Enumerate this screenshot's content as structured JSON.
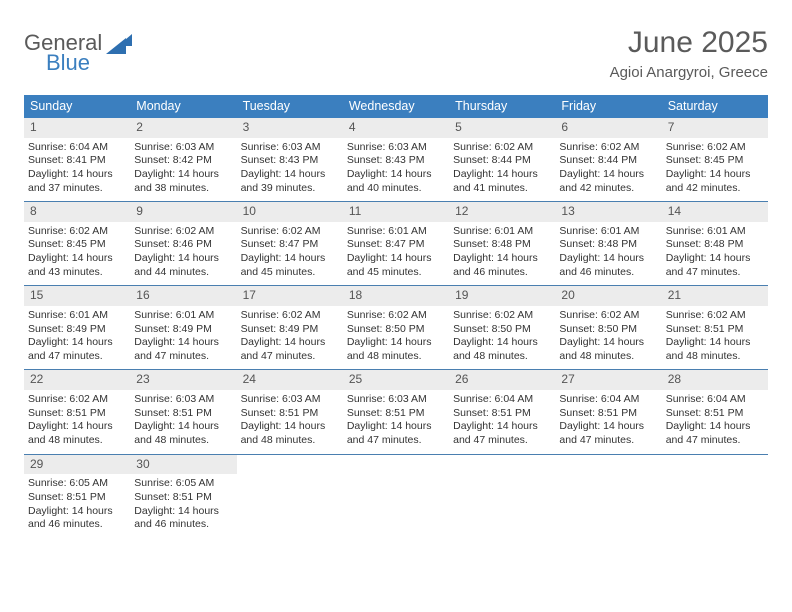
{
  "logo": {
    "line1": "General",
    "line2": "Blue"
  },
  "title": "June 2025",
  "location": "Agioi Anargyroi, Greece",
  "colors": {
    "header_bg": "#3b7fbf",
    "header_text": "#ffffff",
    "daynum_bg": "#ececec",
    "week_border": "#4a7fb0",
    "text": "#333333",
    "logo_gray": "#5a5a5a",
    "logo_blue": "#3b7fbf"
  },
  "day_headers": [
    "Sunday",
    "Monday",
    "Tuesday",
    "Wednesday",
    "Thursday",
    "Friday",
    "Saturday"
  ],
  "weeks": [
    [
      {
        "n": "1",
        "sr": "Sunrise: 6:04 AM",
        "ss": "Sunset: 8:41 PM",
        "d1": "Daylight: 14 hours",
        "d2": "and 37 minutes."
      },
      {
        "n": "2",
        "sr": "Sunrise: 6:03 AM",
        "ss": "Sunset: 8:42 PM",
        "d1": "Daylight: 14 hours",
        "d2": "and 38 minutes."
      },
      {
        "n": "3",
        "sr": "Sunrise: 6:03 AM",
        "ss": "Sunset: 8:43 PM",
        "d1": "Daylight: 14 hours",
        "d2": "and 39 minutes."
      },
      {
        "n": "4",
        "sr": "Sunrise: 6:03 AM",
        "ss": "Sunset: 8:43 PM",
        "d1": "Daylight: 14 hours",
        "d2": "and 40 minutes."
      },
      {
        "n": "5",
        "sr": "Sunrise: 6:02 AM",
        "ss": "Sunset: 8:44 PM",
        "d1": "Daylight: 14 hours",
        "d2": "and 41 minutes."
      },
      {
        "n": "6",
        "sr": "Sunrise: 6:02 AM",
        "ss": "Sunset: 8:44 PM",
        "d1": "Daylight: 14 hours",
        "d2": "and 42 minutes."
      },
      {
        "n": "7",
        "sr": "Sunrise: 6:02 AM",
        "ss": "Sunset: 8:45 PM",
        "d1": "Daylight: 14 hours",
        "d2": "and 42 minutes."
      }
    ],
    [
      {
        "n": "8",
        "sr": "Sunrise: 6:02 AM",
        "ss": "Sunset: 8:45 PM",
        "d1": "Daylight: 14 hours",
        "d2": "and 43 minutes."
      },
      {
        "n": "9",
        "sr": "Sunrise: 6:02 AM",
        "ss": "Sunset: 8:46 PM",
        "d1": "Daylight: 14 hours",
        "d2": "and 44 minutes."
      },
      {
        "n": "10",
        "sr": "Sunrise: 6:02 AM",
        "ss": "Sunset: 8:47 PM",
        "d1": "Daylight: 14 hours",
        "d2": "and 45 minutes."
      },
      {
        "n": "11",
        "sr": "Sunrise: 6:01 AM",
        "ss": "Sunset: 8:47 PM",
        "d1": "Daylight: 14 hours",
        "d2": "and 45 minutes."
      },
      {
        "n": "12",
        "sr": "Sunrise: 6:01 AM",
        "ss": "Sunset: 8:48 PM",
        "d1": "Daylight: 14 hours",
        "d2": "and 46 minutes."
      },
      {
        "n": "13",
        "sr": "Sunrise: 6:01 AM",
        "ss": "Sunset: 8:48 PM",
        "d1": "Daylight: 14 hours",
        "d2": "and 46 minutes."
      },
      {
        "n": "14",
        "sr": "Sunrise: 6:01 AM",
        "ss": "Sunset: 8:48 PM",
        "d1": "Daylight: 14 hours",
        "d2": "and 47 minutes."
      }
    ],
    [
      {
        "n": "15",
        "sr": "Sunrise: 6:01 AM",
        "ss": "Sunset: 8:49 PM",
        "d1": "Daylight: 14 hours",
        "d2": "and 47 minutes."
      },
      {
        "n": "16",
        "sr": "Sunrise: 6:01 AM",
        "ss": "Sunset: 8:49 PM",
        "d1": "Daylight: 14 hours",
        "d2": "and 47 minutes."
      },
      {
        "n": "17",
        "sr": "Sunrise: 6:02 AM",
        "ss": "Sunset: 8:49 PM",
        "d1": "Daylight: 14 hours",
        "d2": "and 47 minutes."
      },
      {
        "n": "18",
        "sr": "Sunrise: 6:02 AM",
        "ss": "Sunset: 8:50 PM",
        "d1": "Daylight: 14 hours",
        "d2": "and 48 minutes."
      },
      {
        "n": "19",
        "sr": "Sunrise: 6:02 AM",
        "ss": "Sunset: 8:50 PM",
        "d1": "Daylight: 14 hours",
        "d2": "and 48 minutes."
      },
      {
        "n": "20",
        "sr": "Sunrise: 6:02 AM",
        "ss": "Sunset: 8:50 PM",
        "d1": "Daylight: 14 hours",
        "d2": "and 48 minutes."
      },
      {
        "n": "21",
        "sr": "Sunrise: 6:02 AM",
        "ss": "Sunset: 8:51 PM",
        "d1": "Daylight: 14 hours",
        "d2": "and 48 minutes."
      }
    ],
    [
      {
        "n": "22",
        "sr": "Sunrise: 6:02 AM",
        "ss": "Sunset: 8:51 PM",
        "d1": "Daylight: 14 hours",
        "d2": "and 48 minutes."
      },
      {
        "n": "23",
        "sr": "Sunrise: 6:03 AM",
        "ss": "Sunset: 8:51 PM",
        "d1": "Daylight: 14 hours",
        "d2": "and 48 minutes."
      },
      {
        "n": "24",
        "sr": "Sunrise: 6:03 AM",
        "ss": "Sunset: 8:51 PM",
        "d1": "Daylight: 14 hours",
        "d2": "and 48 minutes."
      },
      {
        "n": "25",
        "sr": "Sunrise: 6:03 AM",
        "ss": "Sunset: 8:51 PM",
        "d1": "Daylight: 14 hours",
        "d2": "and 47 minutes."
      },
      {
        "n": "26",
        "sr": "Sunrise: 6:04 AM",
        "ss": "Sunset: 8:51 PM",
        "d1": "Daylight: 14 hours",
        "d2": "and 47 minutes."
      },
      {
        "n": "27",
        "sr": "Sunrise: 6:04 AM",
        "ss": "Sunset: 8:51 PM",
        "d1": "Daylight: 14 hours",
        "d2": "and 47 minutes."
      },
      {
        "n": "28",
        "sr": "Sunrise: 6:04 AM",
        "ss": "Sunset: 8:51 PM",
        "d1": "Daylight: 14 hours",
        "d2": "and 47 minutes."
      }
    ],
    [
      {
        "n": "29",
        "sr": "Sunrise: 6:05 AM",
        "ss": "Sunset: 8:51 PM",
        "d1": "Daylight: 14 hours",
        "d2": "and 46 minutes."
      },
      {
        "n": "30",
        "sr": "Sunrise: 6:05 AM",
        "ss": "Sunset: 8:51 PM",
        "d1": "Daylight: 14 hours",
        "d2": "and 46 minutes."
      },
      null,
      null,
      null,
      null,
      null
    ]
  ]
}
